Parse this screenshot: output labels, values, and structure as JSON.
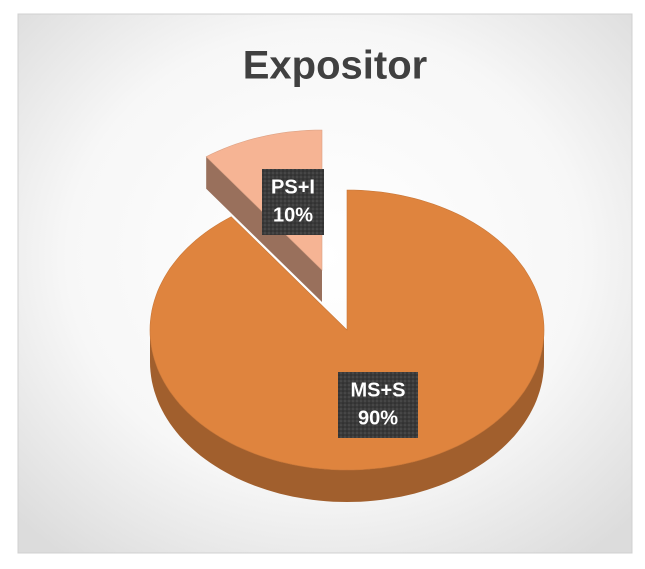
{
  "chart_data": {
    "type": "pie",
    "title": "Expositor",
    "categories": [
      "PS+I",
      "MS+S"
    ],
    "values": [
      10,
      90
    ],
    "value_labels": [
      "10%",
      "90%"
    ],
    "colors": [
      "#f6b494",
      "#df843e"
    ]
  }
}
